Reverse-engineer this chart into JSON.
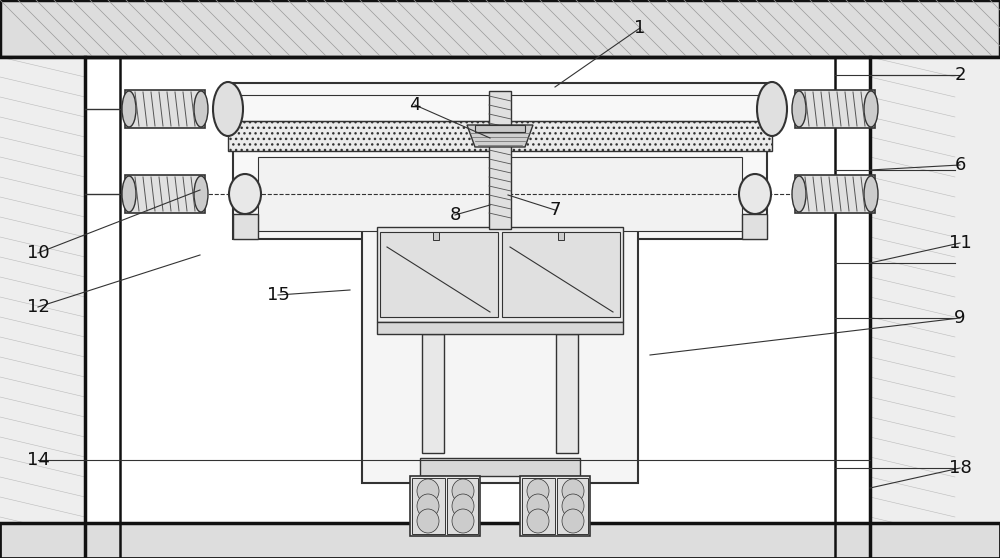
{
  "bg": "#ffffff",
  "dk": "#333333",
  "black": "#111111",
  "gray1": "#e8e8e8",
  "gray2": "#d0d0d0",
  "gray3": "#f5f5f5",
  "wall_fill": "#f0f0f0",
  "ceil_fill": "#cccccc",
  "spring_color": "#222222",
  "label_fs": 13,
  "annotations": [
    [
      "1",
      640,
      28,
      555,
      87
    ],
    [
      "2",
      960,
      75,
      870,
      75
    ],
    [
      "4",
      415,
      105,
      490,
      138
    ],
    [
      "6",
      960,
      165,
      870,
      170
    ],
    [
      "7",
      555,
      210,
      508,
      195
    ],
    [
      "8",
      455,
      215,
      490,
      205
    ],
    [
      "9",
      960,
      318,
      650,
      355
    ],
    [
      "10",
      38,
      253,
      200,
      190
    ],
    [
      "11",
      960,
      243,
      870,
      263
    ],
    [
      "12",
      38,
      307,
      200,
      255
    ],
    [
      "14",
      38,
      460,
      870,
      460
    ],
    [
      "15",
      278,
      295,
      350,
      290
    ],
    [
      "18",
      960,
      468,
      870,
      488
    ]
  ]
}
